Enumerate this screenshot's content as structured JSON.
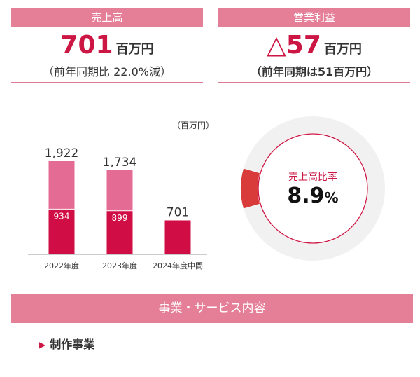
{
  "sales": {
    "header": "売上高",
    "value": "701",
    "unit": "百万円",
    "sub": "（前年同期比 22.0%減）"
  },
  "profit": {
    "header": "営業利益",
    "value": "△57",
    "unit": "百万円",
    "sub": "（前年同期は51百万円）"
  },
  "chart_data": {
    "type": "bar",
    "unit_label": "（百万円）",
    "categories": [
      "2022年度",
      "2023年度",
      "2024年度中間"
    ],
    "totals": [
      1922,
      1734,
      701
    ],
    "total_labels": [
      "1,922",
      "1,734",
      "701"
    ],
    "inner_values": [
      934,
      899,
      null
    ],
    "inner_labels": [
      "934",
      "899",
      ""
    ],
    "colors": {
      "upper": "#e46b93",
      "lower": "#d10d45"
    },
    "ylim": [
      0,
      1922
    ]
  },
  "ratio": {
    "label": "売上高比率",
    "value": "8.9",
    "unit": "%",
    "fraction": 0.089,
    "colors": {
      "fill": "#d93a3a",
      "track": "#f1f1f1",
      "ring": "#cc1643"
    }
  },
  "section": {
    "title": "事業・サービス内容",
    "item": "制作事業"
  }
}
